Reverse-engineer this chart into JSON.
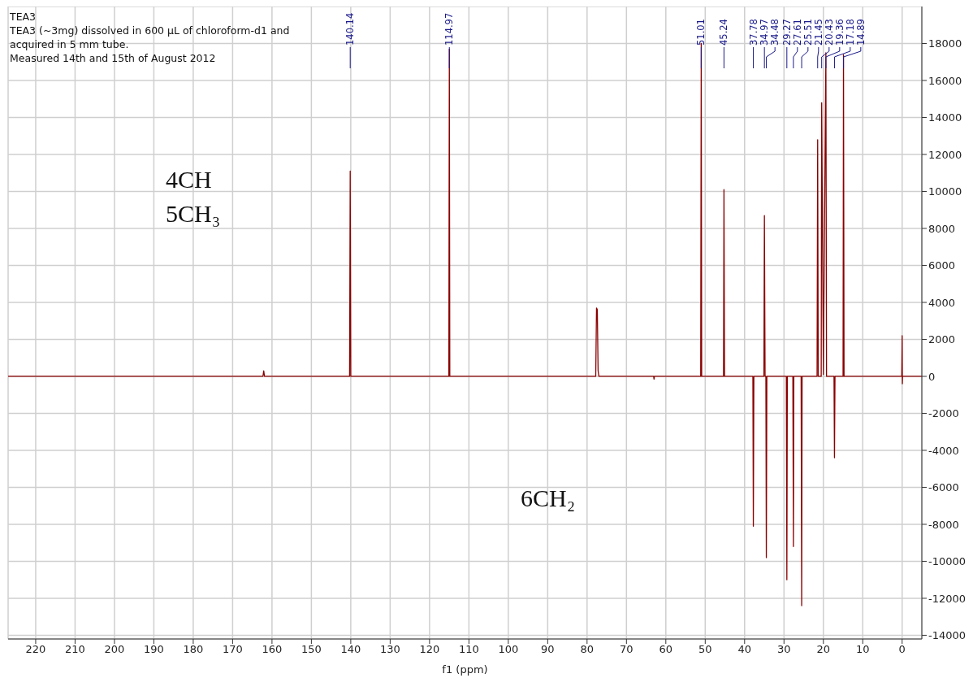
{
  "chart_data": {
    "type": "line",
    "title": "TEA3",
    "subtitle": "TEA3 (~3mg) dissolved in 600 µL of chloroform-d1 and acquired in 5 mm tube.",
    "xlabel": "f1 (ppm)",
    "series": [
      {
        "color": "#8b0000",
        "x": [
          227,
          162.3,
          162.1,
          161.9,
          140.3,
          140.14,
          140.0,
          115.1,
          114.97,
          114.85,
          77.8,
          77.6,
          77.4,
          77.2,
          77.0,
          63.1,
          63.0,
          62.9,
          51.15,
          51.01,
          50.9,
          45.35,
          45.24,
          45.1,
          37.9,
          37.78,
          37.65,
          35.1,
          34.97,
          34.8,
          34.6,
          34.48,
          34.35,
          29.4,
          29.27,
          29.15,
          27.75,
          27.61,
          27.5,
          25.65,
          25.51,
          25.4,
          21.6,
          21.45,
          21.3,
          20.55,
          20.43,
          20.0,
          19.36,
          19.2,
          17.3,
          17.18,
          17.05,
          15.0,
          14.89,
          14.75,
          0.1,
          0.0,
          -0.05,
          -0.1,
          -5
        ],
        "values": [
          0,
          0,
          300,
          0,
          0,
          11100,
          0,
          0,
          17700,
          0,
          0,
          3700,
          3600,
          300,
          0,
          0,
          -150,
          0,
          0,
          18000,
          0,
          0,
          10100,
          0,
          0,
          -8100,
          0,
          0,
          8700,
          0,
          0,
          -9800,
          0,
          0,
          -11000,
          0,
          0,
          -9200,
          0,
          0,
          -12400,
          0,
          0,
          12800,
          0,
          0,
          14800,
          100,
          17500,
          0,
          0,
          -4400,
          0,
          0,
          17400,
          0,
          0,
          2200,
          -400,
          0,
          0
        ]
      }
    ],
    "xlim": [
      227,
      -5
    ],
    "xticks": [
      220,
      210,
      200,
      190,
      180,
      170,
      160,
      150,
      140,
      130,
      120,
      110,
      100,
      90,
      80,
      70,
      60,
      50,
      40,
      30,
      20,
      10,
      0
    ],
    "ylim": [
      -14200,
      20000
    ],
    "yticks": [
      -14000,
      -12000,
      -10000,
      -8000,
      -6000,
      -4000,
      -2000,
      0,
      2000,
      4000,
      6000,
      8000,
      10000,
      12000,
      14000,
      16000,
      18000
    ],
    "grid": true,
    "legend": false,
    "marker": "none",
    "line_style": "solid",
    "annotations": [
      "Measured 14th and 15th of August 2012",
      "4CH",
      "5CH₃",
      "6CH₂",
      {
        "text": "140.14",
        "x": 140.14
      },
      {
        "text": "114.97",
        "x": 114.97
      },
      {
        "text": "51.01",
        "x": 51.01
      },
      {
        "text": "45.24",
        "x": 45.24
      },
      {
        "text": "37.78",
        "x": 37.78
      },
      {
        "text": "34.97",
        "x": 34.97
      },
      {
        "text": "34.48",
        "x": 34.48
      },
      {
        "text": "29.27",
        "x": 29.27
      },
      {
        "text": "27.61",
        "x": 27.61
      },
      {
        "text": "25.51",
        "x": 25.51
      },
      {
        "text": "21.45",
        "x": 21.45
      },
      {
        "text": "20.43",
        "x": 20.43
      },
      {
        "text": "19.36",
        "x": 19.36
      },
      {
        "text": "17.18",
        "x": 17.18
      },
      {
        "text": "14.89",
        "x": 14.89
      }
    ]
  }
}
